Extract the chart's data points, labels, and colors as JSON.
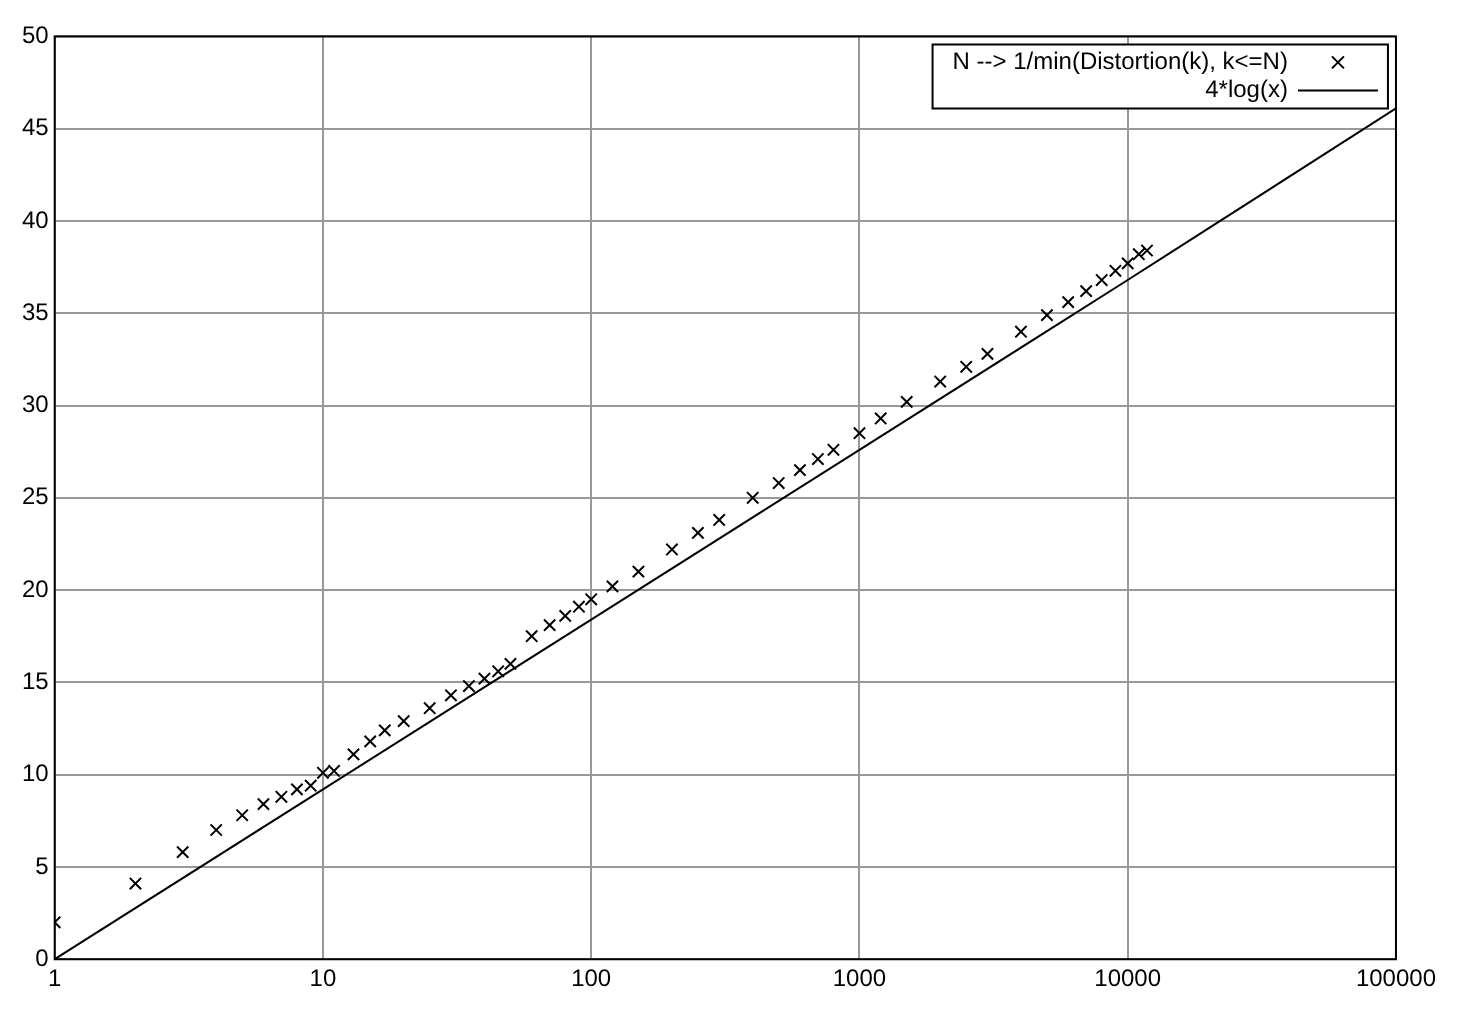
{
  "chart_data": {
    "type": "scatter",
    "log": "x",
    "grid": true,
    "legend": "top right",
    "xlim": [
      1,
      100000
    ],
    "xticks": [
      1,
      10,
      100,
      1000,
      10000,
      100000
    ],
    "ylim": [
      0,
      50
    ],
    "yticks": [
      0,
      5,
      10,
      15,
      20,
      25,
      30,
      35,
      40,
      45,
      50
    ],
    "series": [
      {
        "name": "N --> 1/min(Distortion(k), k<=N)",
        "type": "scatter",
        "marker": "cross",
        "color": "#000000",
        "x": [
          1,
          2,
          3,
          4,
          5,
          6,
          7,
          8,
          9,
          10,
          11,
          13,
          15,
          17,
          20,
          25,
          30,
          35,
          40,
          45,
          50,
          60,
          70,
          80,
          90,
          100,
          120,
          150,
          200,
          250,
          300,
          400,
          500,
          600,
          700,
          800,
          1000,
          1200,
          1500,
          2000,
          2500,
          3000,
          4000,
          5000,
          6000,
          7000,
          8000,
          9000,
          10000,
          11000,
          11800
        ],
        "values": [
          2.0,
          4.1,
          5.8,
          7.0,
          7.8,
          8.4,
          8.8,
          9.2,
          9.4,
          10.1,
          10.2,
          11.1,
          11.8,
          12.4,
          12.9,
          13.6,
          14.3,
          14.8,
          15.2,
          15.6,
          16.0,
          17.5,
          18.1,
          18.6,
          19.1,
          19.5,
          20.2,
          21.0,
          22.2,
          23.1,
          23.8,
          25.0,
          25.8,
          26.5,
          27.1,
          27.6,
          28.5,
          29.3,
          30.2,
          31.3,
          32.1,
          32.8,
          34.0,
          34.9,
          35.6,
          36.2,
          36.8,
          37.3,
          37.7,
          38.2,
          38.4
        ]
      },
      {
        "name": "4*log(x)",
        "type": "line",
        "marker": "none",
        "line_style": "solid",
        "color": "#000000",
        "x": [
          1,
          10,
          100,
          1000,
          10000,
          100000
        ],
        "values": [
          0,
          9.2,
          18.4,
          27.6,
          36.8,
          46.1
        ]
      }
    ]
  }
}
